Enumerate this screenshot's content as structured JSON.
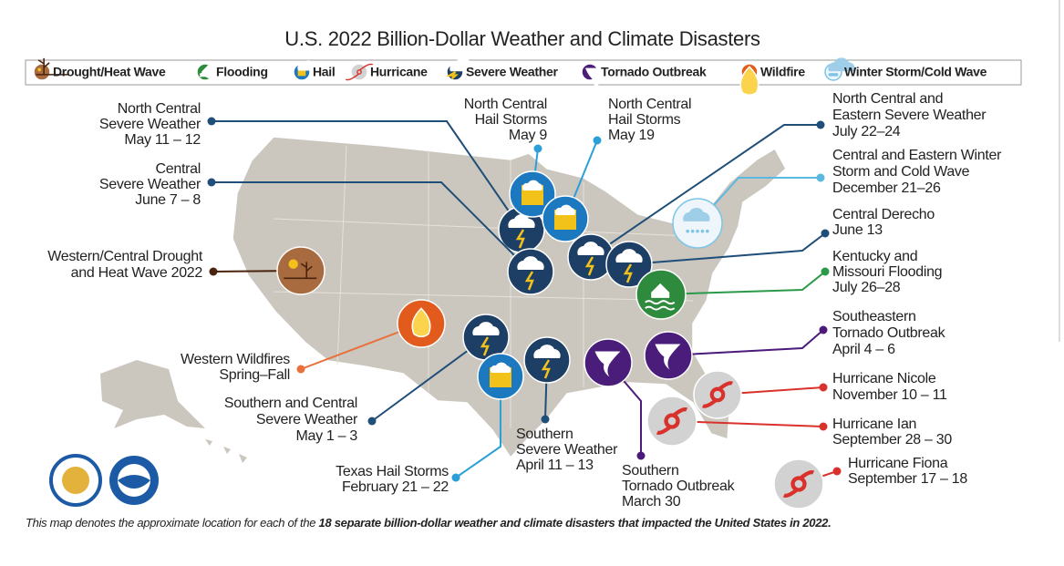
{
  "title": "U.S. 2022 Billion-Dollar Weather and Climate Disasters",
  "legend": [
    "Drought/Heat Wave",
    "Flooding",
    "Hail",
    "Hurricane",
    "Severe Weather",
    "Tornado Outbreak",
    "Wildfire",
    "Winter Storm/Cold Wave"
  ],
  "events": [
    {
      "lines": [
        "North Central",
        "Severe Weather",
        "May 11 – 12"
      ]
    },
    {
      "lines": [
        "Central",
        "Severe Weather",
        "June 7 – 8"
      ]
    },
    {
      "lines": [
        "Western/Central Drought",
        "and Heat Wave 2022"
      ]
    },
    {
      "lines": [
        "Western Wildfires",
        "Spring–Fall"
      ]
    },
    {
      "lines": [
        "Southern and Central",
        "Severe Weather",
        "May 1 – 3"
      ]
    },
    {
      "lines": [
        "Texas Hail Storms",
        "February 21 – 22"
      ]
    },
    {
      "lines": [
        "Southern",
        "Severe Weather",
        "April 11 – 13"
      ]
    },
    {
      "lines": [
        "Southern",
        "Tornado Outbreak",
        "March 30"
      ]
    },
    {
      "lines": [
        "North Central",
        "Hail Storms",
        "May 9"
      ]
    },
    {
      "lines": [
        "North Central",
        "Hail Storms",
        "May 19"
      ]
    },
    {
      "lines": [
        "North Central and",
        "Eastern Severe Weather",
        "July 22–24"
      ]
    },
    {
      "lines": [
        "Central and Eastern Winter",
        "Storm and Cold Wave",
        "December 21–26"
      ]
    },
    {
      "lines": [
        "Central Derecho",
        "June 13"
      ]
    },
    {
      "lines": [
        "Kentucky and",
        "Missouri Flooding",
        "July 26–28"
      ]
    },
    {
      "lines": [
        "Southeastern",
        "Tornado Outbreak",
        "April 4 – 6"
      ]
    },
    {
      "lines": [
        "Hurricane Nicole",
        "November 10 – 11"
      ]
    },
    {
      "lines": [
        "Hurricane Ian",
        "September 28 – 30"
      ]
    },
    {
      "lines": [
        "Hurricane Fiona",
        "September 17 – 18"
      ]
    }
  ],
  "footnote": {
    "text": "This map denotes the approximate location for each of the ",
    "emphasis": "18 separate billion-dollar weather and climate disasters that impacted the United States in 2022."
  }
}
